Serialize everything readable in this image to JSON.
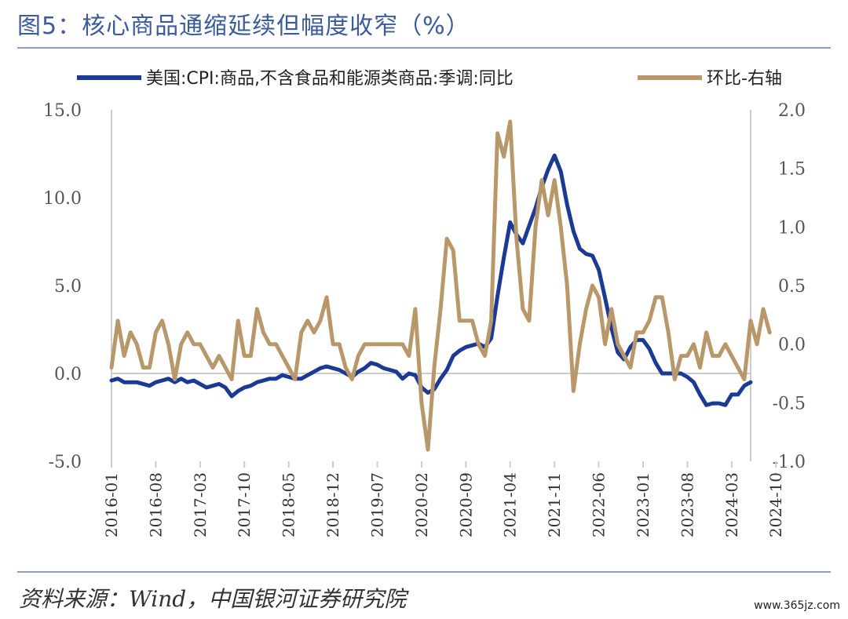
{
  "title": "图5：核心商品通缩延续但幅度收窄（%）",
  "source": "资料来源：Wind，中国银河证券研究院",
  "watermark": "www.365jz.com",
  "chart_data": {
    "type": "line",
    "colors": {
      "series1": "#1b3a93",
      "series2": "#b8986a",
      "axis": "#cccccc"
    },
    "legend_position": "top",
    "grid": false,
    "y_left_lim": [
      -5,
      15
    ],
    "y_left_ticks": [
      "15.0",
      "10.0",
      "5.0",
      "0.0",
      "-5.0"
    ],
    "y_right_lim": [
      -1,
      2
    ],
    "y_right_ticks": [
      "2.0",
      "1.5",
      "1.0",
      "0.5",
      "0.0",
      "-0.5",
      "-1.0"
    ],
    "x_ticks": [
      "2016-01",
      "2016-08",
      "2017-03",
      "2017-10",
      "2018-05",
      "2018-12",
      "2019-07",
      "2020-02",
      "2020-09",
      "2021-04",
      "2021-11",
      "2022-06",
      "2023-01",
      "2023-08",
      "2024-03",
      "2024-10"
    ],
    "x_start": "2016-01",
    "series": [
      {
        "name": "美国:CPI:商品,不含食品和能源类商品:季调:同比",
        "axis": "left",
        "values": [
          -0.4,
          -0.3,
          -0.5,
          -0.5,
          -0.5,
          -0.6,
          -0.7,
          -0.5,
          -0.4,
          -0.3,
          -0.5,
          -0.3,
          -0.5,
          -0.4,
          -0.6,
          -0.8,
          -0.7,
          -0.6,
          -0.8,
          -1.3,
          -1.0,
          -0.8,
          -0.7,
          -0.5,
          -0.4,
          -0.3,
          -0.3,
          -0.1,
          -0.2,
          -0.3,
          -0.3,
          -0.1,
          0.1,
          0.3,
          0.4,
          0.3,
          0.2,
          0.0,
          -0.2,
          0.1,
          0.3,
          0.6,
          0.5,
          0.3,
          0.2,
          0.1,
          -0.3,
          0.0,
          -0.1,
          -0.8,
          -1.1,
          -0.9,
          -0.3,
          0.2,
          1.0,
          1.3,
          1.5,
          1.6,
          1.7,
          1.5,
          2.0,
          4.4,
          6.6,
          8.6,
          7.9,
          7.4,
          8.4,
          9.4,
          10.6,
          11.6,
          12.4,
          11.5,
          9.6,
          8.1,
          7.1,
          6.8,
          6.7,
          5.9,
          4.3,
          2.6,
          1.2,
          0.8,
          1.5,
          1.9,
          1.9,
          1.4,
          0.6,
          0.0,
          0.0,
          0.0,
          0.0,
          -0.2,
          -0.5,
          -1.2,
          -1.8,
          -1.7,
          -1.7,
          -1.8,
          -1.2,
          -1.2,
          -0.7,
          -0.5
        ]
      },
      {
        "name": "环比-右轴",
        "axis": "right",
        "values": [
          -0.2,
          0.2,
          -0.1,
          0.1,
          0.0,
          -0.2,
          -0.2,
          0.1,
          0.2,
          0.0,
          -0.3,
          0.0,
          0.1,
          0.0,
          0.0,
          -0.1,
          -0.2,
          -0.1,
          -0.2,
          -0.3,
          0.2,
          -0.1,
          -0.1,
          0.3,
          0.1,
          0.0,
          0.0,
          -0.1,
          -0.2,
          -0.3,
          0.1,
          0.2,
          0.1,
          0.2,
          0.4,
          0.0,
          0.0,
          -0.2,
          -0.3,
          -0.1,
          0.0,
          0.0,
          0.0,
          0.0,
          0.0,
          0.0,
          0.0,
          -0.1,
          0.3,
          -0.5,
          -0.9,
          -0.2,
          0.3,
          0.9,
          0.8,
          0.2,
          0.2,
          0.2,
          0.0,
          -0.1,
          0.2,
          1.8,
          1.6,
          1.9,
          0.9,
          0.3,
          0.2,
          1.0,
          1.4,
          1.1,
          1.4,
          1.0,
          0.5,
          -0.4,
          0.0,
          0.3,
          0.5,
          0.4,
          0.0,
          0.3,
          0.0,
          -0.1,
          -0.2,
          0.1,
          0.1,
          0.2,
          0.4,
          0.4,
          0.1,
          -0.3,
          -0.1,
          -0.1,
          0.0,
          -0.2,
          0.1,
          -0.1,
          -0.1,
          0.0,
          -0.1,
          -0.2,
          -0.3,
          0.2,
          0.0,
          0.3,
          0.1
        ]
      }
    ]
  }
}
